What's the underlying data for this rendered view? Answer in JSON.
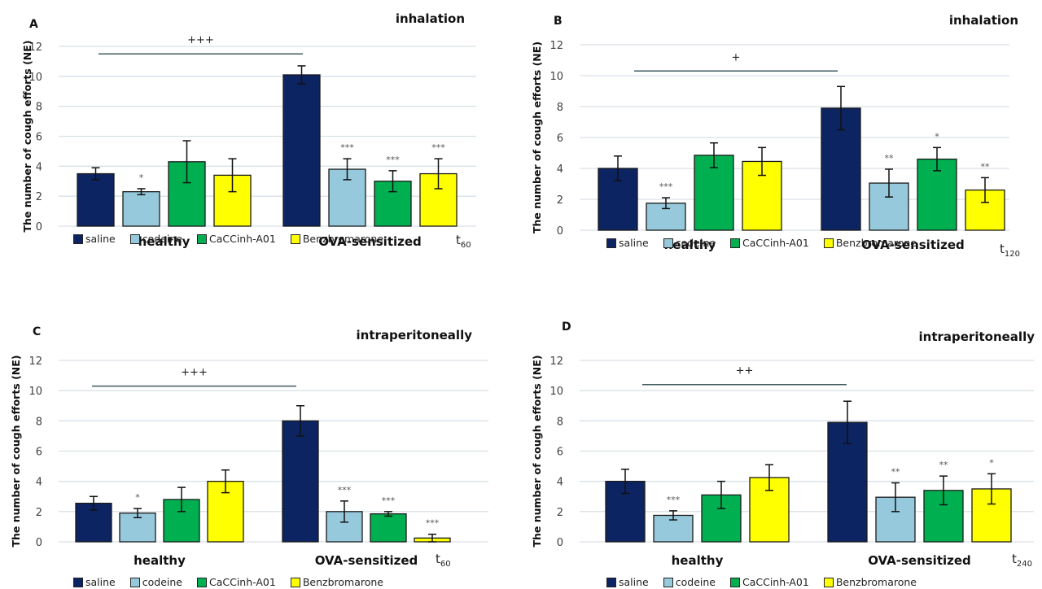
{
  "figure": {
    "legend": [
      {
        "label": "saline",
        "color": "#0d2463"
      },
      {
        "label": "codeine",
        "color": "#96c9dc"
      },
      {
        "label": "CaCCinh-A01",
        "color": "#00b050"
      },
      {
        "label": "Benzbromarone",
        "color": "#ffff00"
      }
    ]
  },
  "chart_data": [
    {
      "type": "bar",
      "panel_label": "A",
      "title": "inhalation",
      "time_label": "t",
      "time_sub": "60",
      "ylabel": "The number of cough efforts (NE)",
      "ylim": [
        0,
        12
      ],
      "yticks": [
        0,
        2,
        4,
        6,
        8,
        10,
        12
      ],
      "grid": true,
      "legend_position": "bottom",
      "categories": [
        "healthy",
        "OVA-sensitized"
      ],
      "bracket_label": "+++",
      "bracket_y": 11.5,
      "series": [
        {
          "name": "saline",
          "values": [
            3.5,
            10.1
          ],
          "errors": [
            0.4,
            0.6
          ],
          "sig": [
            "",
            ""
          ]
        },
        {
          "name": "codeine",
          "values": [
            2.3,
            3.8
          ],
          "errors": [
            0.2,
            0.7
          ],
          "sig": [
            "*",
            "***"
          ]
        },
        {
          "name": "CaCCinh-A01",
          "values": [
            4.3,
            3.0
          ],
          "errors": [
            1.4,
            0.7
          ],
          "sig": [
            "",
            "***"
          ]
        },
        {
          "name": "Benzbromarone",
          "values": [
            3.4,
            3.5
          ],
          "errors": [
            1.1,
            1.0
          ],
          "sig": [
            "",
            "***"
          ]
        }
      ]
    },
    {
      "type": "bar",
      "panel_label": "B",
      "title": "inhalation",
      "time_label": "t",
      "time_sub": "120",
      "ylabel": "The number of cough efforts (NE)",
      "ylim": [
        0,
        12
      ],
      "yticks": [
        0,
        2,
        4,
        6,
        8,
        10,
        12
      ],
      "grid": true,
      "legend_position": "bottom",
      "categories": [
        "healthy",
        "OVA-sensitized"
      ],
      "bracket_label": "+",
      "bracket_y": 10.3,
      "series": [
        {
          "name": "saline",
          "values": [
            4.0,
            7.9
          ],
          "errors": [
            0.8,
            1.4
          ],
          "sig": [
            "",
            ""
          ]
        },
        {
          "name": "codeine",
          "values": [
            1.75,
            3.05
          ],
          "errors": [
            0.35,
            0.9
          ],
          "sig": [
            "***",
            "**"
          ]
        },
        {
          "name": "CaCCinh-A01",
          "values": [
            4.85,
            4.6
          ],
          "errors": [
            0.8,
            0.75
          ],
          "sig": [
            "",
            "*"
          ]
        },
        {
          "name": "Benzbromarone",
          "values": [
            4.45,
            2.6
          ],
          "errors": [
            0.9,
            0.8
          ],
          "sig": [
            "",
            "**"
          ]
        }
      ]
    },
    {
      "type": "bar",
      "panel_label": "C",
      "title": "intraperitoneally",
      "time_label": "t",
      "time_sub": "60",
      "ylabel": "The number of cough efforts (NE)",
      "ylim": [
        0,
        12
      ],
      "yticks": [
        0,
        2,
        4,
        6,
        8,
        10,
        12
      ],
      "grid": true,
      "legend_position": "bottom",
      "categories": [
        "healthy",
        "OVA-sensitized"
      ],
      "bracket_label": "+++",
      "bracket_y": 10.3,
      "series": [
        {
          "name": "saline",
          "values": [
            2.55,
            8.0
          ],
          "errors": [
            0.45,
            1.0
          ],
          "sig": [
            "",
            ""
          ]
        },
        {
          "name": "codeine",
          "values": [
            1.9,
            2.0
          ],
          "errors": [
            0.3,
            0.7
          ],
          "sig": [
            "*",
            "***"
          ]
        },
        {
          "name": "CaCCinh-A01",
          "values": [
            2.8,
            1.85
          ],
          "errors": [
            0.8,
            0.15
          ],
          "sig": [
            "",
            "***"
          ]
        },
        {
          "name": "Benzbromarone",
          "values": [
            4.0,
            0.25
          ],
          "errors": [
            0.75,
            0.25
          ],
          "sig": [
            "",
            "***"
          ]
        }
      ]
    },
    {
      "type": "bar",
      "panel_label": "D",
      "title": "intraperitoneally",
      "time_label": "t",
      "time_sub": "240",
      "ylabel": "The number of cough efforts (NE)",
      "ylim": [
        0,
        12
      ],
      "yticks": [
        0,
        2,
        4,
        6,
        8,
        10,
        12
      ],
      "grid": true,
      "legend_position": "bottom",
      "categories": [
        "healthy",
        "OVA-sensitized"
      ],
      "bracket_label": "++",
      "bracket_y": 10.4,
      "series": [
        {
          "name": "saline",
          "values": [
            4.0,
            7.9
          ],
          "errors": [
            0.8,
            1.4
          ],
          "sig": [
            "",
            ""
          ]
        },
        {
          "name": "codeine",
          "values": [
            1.75,
            2.95
          ],
          "errors": [
            0.3,
            0.95
          ],
          "sig": [
            "***",
            "**"
          ]
        },
        {
          "name": "CaCCinh-A01",
          "values": [
            3.1,
            3.4
          ],
          "errors": [
            0.9,
            0.95
          ],
          "sig": [
            "",
            "**"
          ]
        },
        {
          "name": "Benzbromarone",
          "values": [
            4.25,
            3.5
          ],
          "errors": [
            0.85,
            1.0
          ],
          "sig": [
            "",
            "*"
          ]
        }
      ]
    }
  ]
}
